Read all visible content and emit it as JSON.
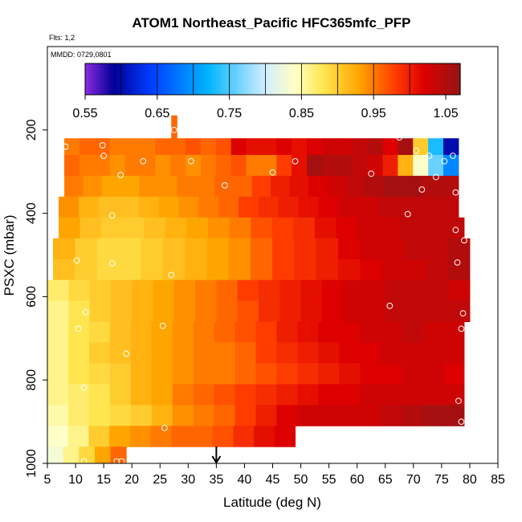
{
  "chart_data": {
    "type": "heatmap",
    "title": "ATOM1 Northeast_Pacific HFC365mfc_PFP",
    "flights_label": "Flts: 1,2",
    "date_label": "MMDD: 0729,0801",
    "xlabel": "Latitude (deg N)",
    "ylabel": "PSXC (mbar)",
    "xlim": [
      5,
      85
    ],
    "ylim": [
      1000,
      0
    ],
    "x_ticks": [
      5,
      10,
      15,
      20,
      25,
      30,
      35,
      40,
      45,
      50,
      55,
      60,
      65,
      70,
      75,
      80,
      85
    ],
    "y_ticks": [
      200,
      400,
      600,
      800,
      1000
    ],
    "colorbar": {
      "range": [
        0.55,
        1.07
      ],
      "tick_values": [
        0.55,
        0.65,
        0.75,
        0.85,
        0.95,
        1.05
      ],
      "tick_labels": [
        "0.55",
        "0.65",
        "0.75",
        "0.85",
        "0.95",
        "1.05"
      ]
    },
    "arrow_marker_latitude": 35,
    "pressure_bands": [
      {
        "p_top": 220,
        "p_bot": 260,
        "x_start": 8,
        "x_end": 78,
        "values": [
          0.95,
          0.96,
          0.96,
          0.95,
          0.95,
          0.95,
          0.96,
          0.96,
          0.97,
          0.96,
          0.97,
          1.02,
          1.01,
          1.01,
          1.02,
          1.01,
          1.02,
          1.03,
          1.03,
          1.04,
          1.05,
          1.02,
          1.06,
          0.9,
          0.73,
          0.6
        ]
      },
      {
        "p_top": 260,
        "p_bot": 310,
        "x_start": 8,
        "x_end": 78,
        "values": [
          0.96,
          0.95,
          0.95,
          0.94,
          0.95,
          0.95,
          0.94,
          0.95,
          0.94,
          0.95,
          0.96,
          0.97,
          0.95,
          0.95,
          0.98,
          1.01,
          1.06,
          1.05,
          1.05,
          1.04,
          1.03,
          1.0,
          0.92,
          0.84,
          0.76,
          0.69
        ]
      },
      {
        "p_top": 310,
        "p_bot": 360,
        "x_start": 8,
        "x_end": 78,
        "values": [
          0.95,
          0.94,
          0.93,
          0.93,
          0.94,
          0.94,
          0.95,
          0.95,
          0.96,
          0.96,
          0.98,
          1.0,
          1.01,
          1.02,
          1.03,
          1.04,
          1.05,
          1.06,
          1.06,
          1.05,
          1.05
        ]
      },
      {
        "p_top": 360,
        "p_bot": 410,
        "x_start": 7,
        "x_end": 78,
        "values": [
          0.94,
          0.92,
          0.91,
          0.91,
          0.92,
          0.93,
          0.94,
          0.95,
          0.96,
          0.98,
          0.99,
          1.0,
          1.01,
          1.02,
          1.03,
          1.03,
          1.04,
          1.04,
          1.04,
          1.04
        ]
      },
      {
        "p_top": 410,
        "p_bot": 460,
        "x_start": 7,
        "x_end": 79,
        "values": [
          0.93,
          0.91,
          0.9,
          0.9,
          0.91,
          0.92,
          0.93,
          0.94,
          0.95,
          0.97,
          0.98,
          0.99,
          1.01,
          1.02,
          1.03,
          1.03,
          1.04,
          1.04,
          1.04
        ]
      },
      {
        "p_top": 460,
        "p_bot": 510,
        "x_start": 6,
        "x_end": 80,
        "values": [
          0.92,
          0.9,
          0.89,
          0.89,
          0.9,
          0.91,
          0.92,
          0.93,
          0.94,
          0.96,
          0.98,
          0.99,
          1.0,
          1.02,
          1.03,
          1.03,
          1.04,
          1.04,
          1.05
        ]
      },
      {
        "p_top": 510,
        "p_bot": 560,
        "x_start": 6,
        "x_end": 80,
        "values": [
          0.91,
          0.9,
          0.89,
          0.89,
          0.9,
          0.91,
          0.92,
          0.93,
          0.94,
          0.96,
          0.98,
          0.99,
          1.0,
          1.01,
          1.02,
          1.03,
          1.03,
          1.04,
          1.05
        ]
      },
      {
        "p_top": 560,
        "p_bot": 610,
        "x_start": 5,
        "x_end": 80,
        "values": [
          0.87,
          0.89,
          0.9,
          0.91,
          0.92,
          0.93,
          0.94,
          0.95,
          0.96,
          0.98,
          0.99,
          1.0,
          1.01,
          1.02,
          1.03,
          1.03,
          1.04,
          1.04,
          1.04,
          1.03
        ]
      },
      {
        "p_top": 610,
        "p_bot": 660,
        "x_start": 5,
        "x_end": 80,
        "values": [
          0.86,
          0.88,
          0.9,
          0.91,
          0.92,
          0.93,
          0.94,
          0.95,
          0.96,
          0.97,
          0.99,
          1.0,
          1.01,
          1.02,
          1.03,
          1.03,
          1.04,
          1.04,
          1.04,
          1.04
        ]
      },
      {
        "p_top": 660,
        "p_bot": 710,
        "x_start": 5,
        "x_end": 79,
        "values": [
          0.86,
          0.88,
          0.89,
          0.91,
          0.92,
          0.93,
          0.94,
          0.95,
          0.96,
          0.97,
          0.98,
          1.0,
          1.01,
          1.02,
          1.02,
          1.03,
          1.03,
          1.04,
          1.03,
          1.03
        ]
      },
      {
        "p_top": 710,
        "p_bot": 760,
        "x_start": 5,
        "x_end": 79,
        "values": [
          0.86,
          0.88,
          0.9,
          0.91,
          0.92,
          0.93,
          0.94,
          0.95,
          0.95,
          0.96,
          0.98,
          0.99,
          1.0,
          1.01,
          1.02,
          1.02,
          1.03,
          1.03,
          1.03,
          1.03
        ]
      },
      {
        "p_top": 760,
        "p_bot": 810,
        "x_start": 5,
        "x_end": 79,
        "values": [
          0.86,
          0.88,
          0.89,
          0.9,
          0.92,
          0.93,
          0.94,
          0.95,
          0.95,
          0.96,
          0.97,
          0.98,
          0.99,
          1.0,
          1.01,
          1.02,
          1.02,
          1.03,
          1.03,
          1.02
        ]
      },
      {
        "p_top": 810,
        "p_bot": 860,
        "x_start": 5,
        "x_end": 79,
        "values": [
          0.86,
          0.87,
          0.88,
          0.9,
          0.92,
          0.93,
          0.95,
          0.96,
          0.97,
          0.98,
          0.99,
          1.0,
          1.01,
          1.02,
          1.02,
          1.03,
          1.03,
          1.03,
          1.03,
          1.03
        ]
      },
      {
        "p_top": 860,
        "p_bot": 910,
        "x_start": 5,
        "x_end": 79,
        "values": [
          0.85,
          0.87,
          0.88,
          0.89,
          0.9,
          0.92,
          0.94,
          0.95,
          0.96,
          0.98,
          1.0,
          1.02,
          1.03,
          1.03,
          1.03,
          1.03,
          1.04,
          1.05,
          1.06,
          1.06
        ]
      },
      {
        "p_top": 910,
        "p_bot": 960,
        "x_start": 5,
        "x_end": 49,
        "values": [
          0.84,
          0.86,
          0.9,
          0.93,
          0.94,
          0.95,
          0.96,
          0.96,
          0.97,
          0.99,
          1.01,
          1.02
        ]
      },
      {
        "p_top": 960,
        "p_bot": 1000,
        "x_start": 5,
        "x_end": 19,
        "values": [
          0.83,
          0.86,
          0.89,
          0.93,
          0.96
        ]
      },
      {
        "p_top": 165,
        "p_bot": 220,
        "x_start": 27,
        "x_end": 28,
        "values": [
          0.96
        ]
      }
    ],
    "sample_points": [
      {
        "lat": 8.2,
        "p": 240
      },
      {
        "lat": 14.8,
        "p": 237
      },
      {
        "lat": 15.0,
        "p": 262
      },
      {
        "lat": 22.0,
        "p": 275
      },
      {
        "lat": 18.0,
        "p": 308
      },
      {
        "lat": 27.5,
        "p": 200
      },
      {
        "lat": 30.5,
        "p": 275
      },
      {
        "lat": 36.5,
        "p": 333
      },
      {
        "lat": 45.0,
        "p": 302
      },
      {
        "lat": 49.0,
        "p": 275
      },
      {
        "lat": 62.5,
        "p": 305
      },
      {
        "lat": 67.5,
        "p": 218
      },
      {
        "lat": 70.5,
        "p": 250
      },
      {
        "lat": 72.8,
        "p": 262
      },
      {
        "lat": 74.0,
        "p": 313
      },
      {
        "lat": 75.5,
        "p": 275
      },
      {
        "lat": 77.0,
        "p": 262
      },
      {
        "lat": 71.5,
        "p": 343
      },
      {
        "lat": 77.5,
        "p": 350
      },
      {
        "lat": 69.0,
        "p": 402
      },
      {
        "lat": 16.5,
        "p": 405
      },
      {
        "lat": 77.5,
        "p": 440
      },
      {
        "lat": 79.0,
        "p": 465
      },
      {
        "lat": 10.2,
        "p": 513
      },
      {
        "lat": 16.5,
        "p": 520
      },
      {
        "lat": 27.0,
        "p": 548
      },
      {
        "lat": 77.8,
        "p": 518
      },
      {
        "lat": 65.8,
        "p": 622
      },
      {
        "lat": 11.8,
        "p": 637
      },
      {
        "lat": 10.5,
        "p": 677
      },
      {
        "lat": 25.5,
        "p": 670
      },
      {
        "lat": 78.8,
        "p": 640
      },
      {
        "lat": 78.5,
        "p": 677
      },
      {
        "lat": 19.0,
        "p": 737
      },
      {
        "lat": 11.5,
        "p": 818
      },
      {
        "lat": 78.0,
        "p": 850
      },
      {
        "lat": 78.5,
        "p": 900
      },
      {
        "lat": 25.8,
        "p": 915
      },
      {
        "lat": 11.5,
        "p": 995
      },
      {
        "lat": 17.3,
        "p": 995
      },
      {
        "lat": 18.2,
        "p": 995
      }
    ]
  }
}
